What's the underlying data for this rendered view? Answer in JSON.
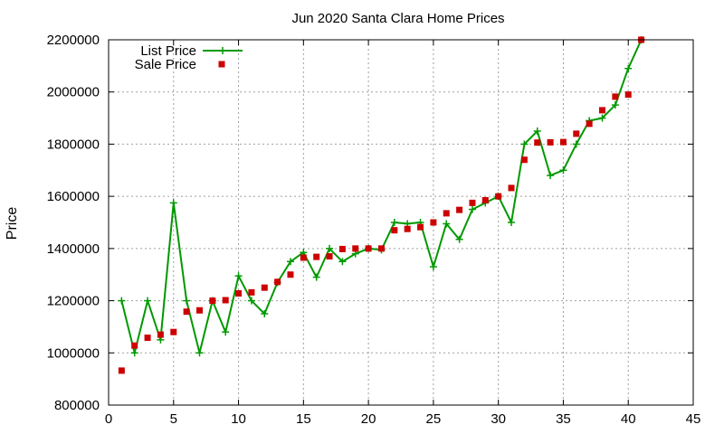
{
  "chart_data": {
    "type": "line",
    "title": "Jun 2020 Santa Clara Home Prices",
    "xlabel": "",
    "ylabel": "Price",
    "xlim": [
      0,
      45
    ],
    "ylim": [
      800000,
      2200000
    ],
    "xticks": [
      0,
      5,
      10,
      15,
      20,
      25,
      30,
      35,
      40,
      45
    ],
    "yticks": [
      800000,
      1000000,
      1200000,
      1400000,
      1600000,
      1800000,
      2000000,
      2200000
    ],
    "grid": true,
    "legend_position": "top-left",
    "series": [
      {
        "name": "List Price",
        "style": "line-plus",
        "color": "#009900",
        "x": [
          1,
          2,
          3,
          4,
          5,
          6,
          7,
          8,
          9,
          10,
          11,
          12,
          13,
          14,
          15,
          16,
          17,
          18,
          19,
          20,
          21,
          22,
          23,
          24,
          25,
          26,
          27,
          28,
          29,
          30,
          31,
          32,
          33,
          34,
          35,
          36,
          37,
          38,
          39,
          40,
          41
        ],
        "y": [
          1200000,
          1000000,
          1200000,
          1050000,
          1575000,
          1200000,
          1000000,
          1200000,
          1080000,
          1295000,
          1200000,
          1150000,
          1270000,
          1350000,
          1385000,
          1290000,
          1400000,
          1350000,
          1380000,
          1400000,
          1395000,
          1500000,
          1495000,
          1500000,
          1330000,
          1495000,
          1435000,
          1550000,
          1575000,
          1600000,
          1500000,
          1800000,
          1850000,
          1680000,
          1700000,
          1800000,
          1890000,
          1900000,
          1950000,
          2090000,
          2200000
        ]
      },
      {
        "name": "Sale Price",
        "style": "square-points",
        "color": "#cc0000",
        "x": [
          1,
          2,
          3,
          4,
          5,
          6,
          7,
          8,
          9,
          10,
          11,
          12,
          13,
          14,
          15,
          16,
          17,
          18,
          19,
          20,
          21,
          22,
          23,
          24,
          25,
          26,
          27,
          28,
          29,
          30,
          31,
          32,
          33,
          34,
          35,
          36,
          37,
          38,
          39,
          40,
          41
        ],
        "y": [
          932000,
          1028000,
          1058000,
          1070000,
          1080000,
          1158000,
          1163000,
          1200000,
          1202000,
          1228000,
          1232000,
          1250000,
          1272000,
          1300000,
          1365000,
          1368000,
          1370000,
          1398000,
          1400000,
          1400000,
          1400000,
          1470000,
          1475000,
          1482000,
          1500000,
          1535000,
          1548000,
          1575000,
          1585000,
          1600000,
          1632000,
          1740000,
          1806000,
          1807000,
          1808000,
          1840000,
          1878000,
          1930000,
          1982000,
          1990000,
          2200000
        ]
      }
    ]
  }
}
